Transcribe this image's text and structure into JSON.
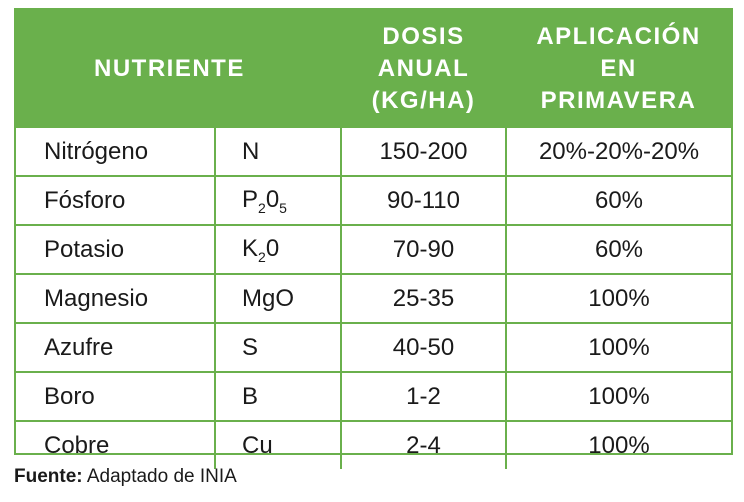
{
  "header": {
    "nutrient": "NUTRIENTE",
    "dose_l1": "DOSIS",
    "dose_l2": "ANUAL",
    "dose_l3": "(KG/HA)",
    "spring_l1": "APLICACIÓN",
    "spring_l2": "EN",
    "spring_l3": "PRIMAVERA"
  },
  "rows": [
    {
      "name": "Nitrógeno",
      "symbol": "N",
      "dose": "150-200",
      "spring": "20%-20%-20%"
    },
    {
      "name": "Fósforo",
      "symbol_base": "P",
      "symbol_sub1": "2",
      "symbol_mid": "0",
      "symbol_sub2": "5",
      "dose": "90-110",
      "spring": "60%"
    },
    {
      "name": "Potasio",
      "symbol_base": "K",
      "symbol_sub1": "2",
      "symbol_mid": "0",
      "dose": "70-90",
      "spring": "60%"
    },
    {
      "name": "Magnesio",
      "symbol": "MgO",
      "dose": "25-35",
      "spring": "100%"
    },
    {
      "name": "Azufre",
      "symbol": "S",
      "dose": "40-50",
      "spring": "100%"
    },
    {
      "name": "Boro",
      "symbol": "B",
      "dose": "1-2",
      "spring": "100%"
    },
    {
      "name": "Cobre",
      "symbol": "Cu",
      "dose": "2-4",
      "spring": "100%"
    }
  ],
  "source": {
    "label": "Fuente:",
    "text": " Adaptado de INIA"
  },
  "colors": {
    "header_bg": "#6ab04c",
    "border": "#6ab04c"
  }
}
